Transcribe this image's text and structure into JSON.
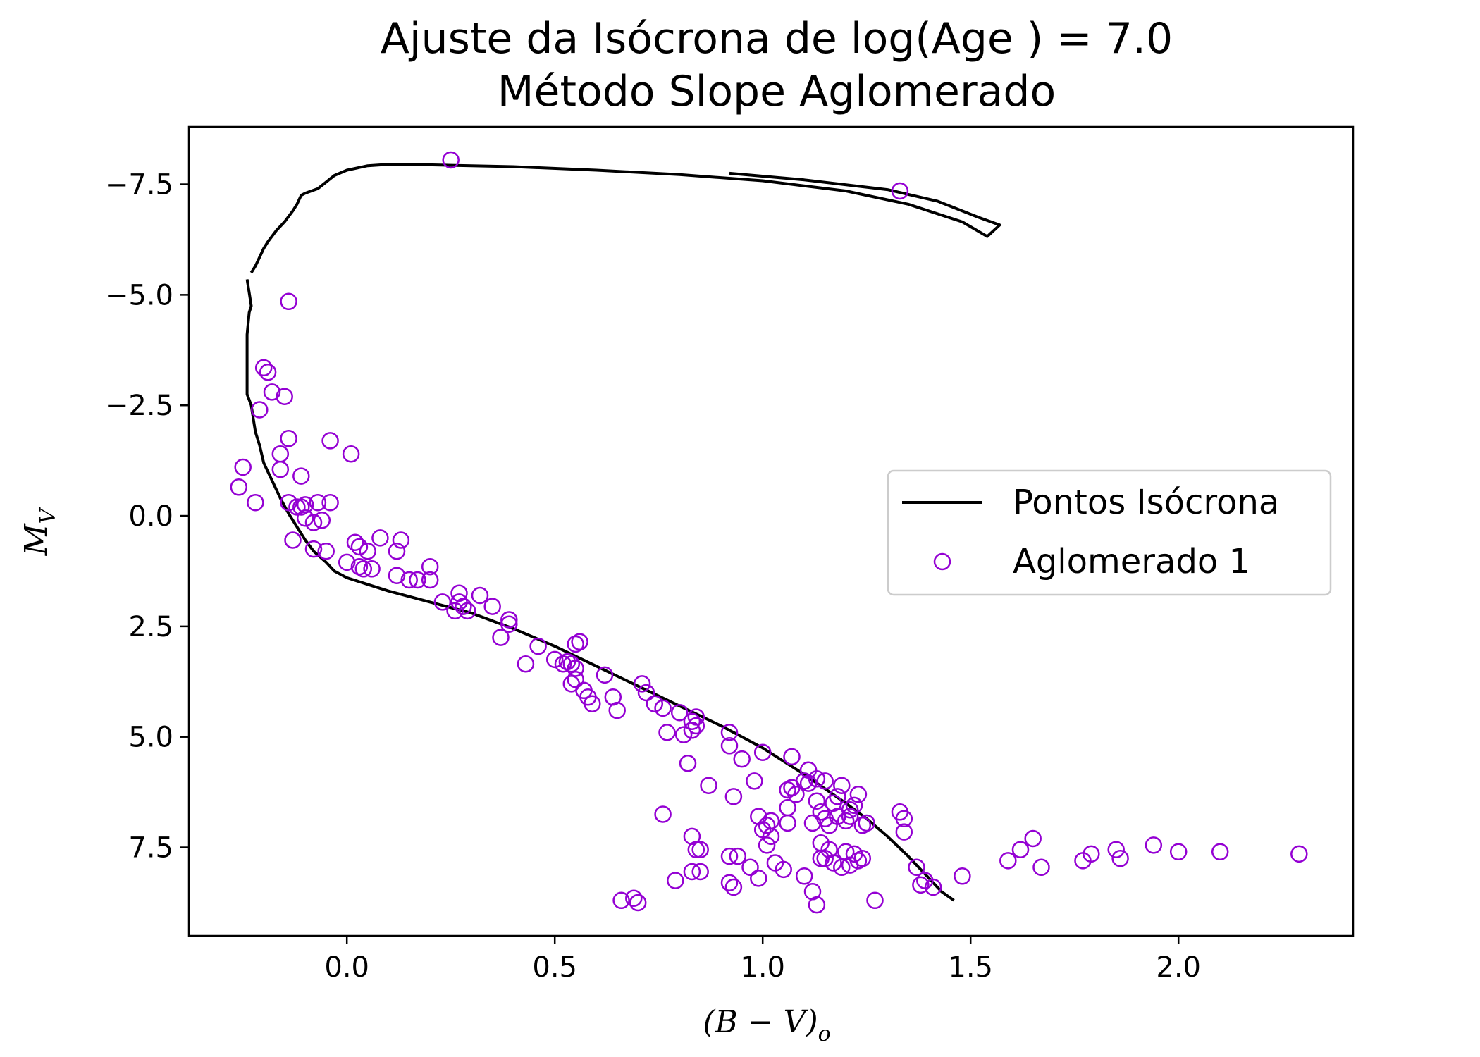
{
  "chart_data": {
    "type": "scatter",
    "title_line1": "Ajuste da Isócrona de log(Age ) = 7.0",
    "title_line2": "Método Slope Aglomerado",
    "xlabel": "(B − V)o",
    "ylabel": "MV",
    "xlim": [
      -0.38,
      2.42
    ],
    "ylim": [
      9.5,
      -8.8
    ],
    "y_inverted": true,
    "xticks": [
      0.0,
      0.5,
      1.0,
      1.5,
      2.0
    ],
    "xtick_labels": [
      "0.0",
      "0.5",
      "1.0",
      "1.5",
      "2.0"
    ],
    "yticks": [
      -7.5,
      -5.0,
      -2.5,
      0.0,
      2.5,
      5.0,
      7.5
    ],
    "ytick_labels": [
      "−7.5",
      "−5.0",
      "−2.5",
      "0.0",
      "2.5",
      "5.0",
      "7.5"
    ],
    "grid": false,
    "legend_position": "center-right",
    "colors": {
      "isochrone": "#000000",
      "cluster": "#9400d3"
    },
    "series": [
      {
        "name": "Pontos Isócrona",
        "kind": "line",
        "points": [
          [
            -0.23,
            -5.5
          ],
          [
            -0.22,
            -5.65
          ],
          [
            -0.2,
            -6.05
          ],
          [
            -0.19,
            -6.2
          ],
          [
            -0.17,
            -6.45
          ],
          [
            -0.15,
            -6.65
          ],
          [
            -0.13,
            -6.9
          ],
          [
            -0.12,
            -7.05
          ],
          [
            -0.11,
            -7.25
          ],
          [
            -0.1,
            -7.3
          ],
          [
            -0.07,
            -7.4
          ],
          [
            -0.05,
            -7.55
          ],
          [
            -0.03,
            -7.7
          ],
          [
            0.0,
            -7.82
          ],
          [
            0.05,
            -7.92
          ],
          [
            0.1,
            -7.95
          ],
          [
            0.15,
            -7.95
          ],
          [
            0.25,
            -7.93
          ],
          [
            0.4,
            -7.9
          ],
          [
            0.6,
            -7.82
          ],
          [
            0.8,
            -7.72
          ],
          [
            1.0,
            -7.58
          ],
          [
            1.2,
            -7.35
          ],
          [
            1.35,
            -7.05
          ],
          [
            1.48,
            -6.65
          ],
          [
            1.54,
            -6.32
          ],
          [
            1.57,
            -6.58
          ],
          [
            1.52,
            -6.75
          ],
          [
            1.42,
            -7.12
          ],
          [
            1.3,
            -7.38
          ],
          [
            1.1,
            -7.6
          ],
          [
            0.92,
            -7.75
          ]
        ]
      },
      {
        "name": "Pontos Isócrona",
        "kind": "line",
        "points": [
          [
            -0.24,
            -5.35
          ],
          [
            -0.235,
            -5.05
          ],
          [
            -0.23,
            -4.75
          ],
          [
            -0.235,
            -4.6
          ],
          [
            -0.24,
            -4.1
          ],
          [
            -0.24,
            -3.5
          ],
          [
            -0.24,
            -2.75
          ],
          [
            -0.23,
            -2.5
          ],
          [
            -0.225,
            -2.2
          ],
          [
            -0.22,
            -1.9
          ],
          [
            -0.21,
            -1.6
          ],
          [
            -0.2,
            -1.2
          ],
          [
            -0.18,
            -0.8
          ],
          [
            -0.16,
            -0.4
          ],
          [
            -0.14,
            -0.05
          ],
          [
            -0.12,
            0.25
          ],
          [
            -0.1,
            0.55
          ],
          [
            -0.08,
            0.8
          ],
          [
            -0.05,
            1.05
          ],
          [
            -0.03,
            1.25
          ],
          [
            0.0,
            1.4
          ],
          [
            0.05,
            1.55
          ],
          [
            0.1,
            1.7
          ],
          [
            0.2,
            1.95
          ],
          [
            0.3,
            2.2
          ],
          [
            0.4,
            2.55
          ],
          [
            0.5,
            2.95
          ],
          [
            0.6,
            3.4
          ],
          [
            0.7,
            3.85
          ],
          [
            0.8,
            4.3
          ],
          [
            0.9,
            4.75
          ],
          [
            1.0,
            5.25
          ],
          [
            1.1,
            5.85
          ],
          [
            1.2,
            6.5
          ],
          [
            1.25,
            6.85
          ],
          [
            1.3,
            7.25
          ],
          [
            1.35,
            7.7
          ],
          [
            1.4,
            8.2
          ],
          [
            1.43,
            8.5
          ],
          [
            1.46,
            8.7
          ]
        ]
      },
      {
        "name": "Aglomerado 1",
        "kind": "scatter",
        "points": [
          [
            0.25,
            -8.05
          ],
          [
            1.33,
            -7.35
          ],
          [
            -0.14,
            -4.85
          ],
          [
            -0.2,
            -3.35
          ],
          [
            -0.19,
            -3.25
          ],
          [
            -0.18,
            -2.8
          ],
          [
            -0.15,
            -2.7
          ],
          [
            -0.21,
            -2.4
          ],
          [
            -0.14,
            -1.75
          ],
          [
            -0.04,
            -1.7
          ],
          [
            0.01,
            -1.4
          ],
          [
            -0.16,
            -1.4
          ],
          [
            -0.25,
            -1.1
          ],
          [
            -0.16,
            -1.05
          ],
          [
            -0.11,
            -0.9
          ],
          [
            -0.26,
            -0.65
          ],
          [
            -0.22,
            -0.3
          ],
          [
            -0.14,
            -0.3
          ],
          [
            -0.12,
            -0.2
          ],
          [
            -0.1,
            -0.25
          ],
          [
            -0.11,
            -0.2
          ],
          [
            -0.07,
            -0.3
          ],
          [
            -0.04,
            -0.3
          ],
          [
            -0.1,
            0.05
          ],
          [
            -0.08,
            0.15
          ],
          [
            -0.06,
            0.1
          ],
          [
            -0.13,
            0.55
          ],
          [
            -0.08,
            0.75
          ],
          [
            -0.05,
            0.8
          ],
          [
            0.02,
            0.6
          ],
          [
            0.03,
            0.7
          ],
          [
            0.05,
            0.8
          ],
          [
            0.08,
            0.5
          ],
          [
            0.12,
            0.8
          ],
          [
            0.13,
            0.55
          ],
          [
            0.0,
            1.05
          ],
          [
            0.03,
            1.15
          ],
          [
            0.04,
            1.2
          ],
          [
            0.06,
            1.2
          ],
          [
            0.12,
            1.35
          ],
          [
            0.15,
            1.45
          ],
          [
            0.17,
            1.45
          ],
          [
            0.2,
            1.15
          ],
          [
            0.2,
            1.45
          ],
          [
            0.23,
            1.95
          ],
          [
            0.26,
            2.15
          ],
          [
            0.27,
            1.75
          ],
          [
            0.27,
            1.95
          ],
          [
            0.28,
            2.05
          ],
          [
            0.29,
            2.15
          ],
          [
            0.32,
            1.8
          ],
          [
            0.35,
            2.05
          ],
          [
            0.39,
            2.35
          ],
          [
            0.39,
            2.45
          ],
          [
            0.37,
            2.75
          ],
          [
            0.43,
            3.35
          ],
          [
            0.46,
            2.95
          ],
          [
            0.5,
            3.25
          ],
          [
            0.52,
            3.35
          ],
          [
            0.53,
            3.3
          ],
          [
            0.54,
            3.35
          ],
          [
            0.55,
            2.9
          ],
          [
            0.56,
            2.85
          ],
          [
            0.55,
            3.45
          ],
          [
            0.54,
            3.8
          ],
          [
            0.55,
            3.7
          ],
          [
            0.57,
            3.95
          ],
          [
            0.58,
            4.1
          ],
          [
            0.59,
            4.25
          ],
          [
            0.62,
            3.6
          ],
          [
            0.64,
            4.1
          ],
          [
            0.65,
            4.4
          ],
          [
            0.71,
            3.8
          ],
          [
            0.72,
            4.0
          ],
          [
            0.74,
            4.25
          ],
          [
            0.76,
            4.35
          ],
          [
            0.77,
            4.9
          ],
          [
            0.8,
            4.45
          ],
          [
            0.81,
            4.95
          ],
          [
            0.83,
            4.85
          ],
          [
            0.83,
            4.65
          ],
          [
            0.84,
            4.75
          ],
          [
            0.84,
            4.55
          ],
          [
            0.82,
            5.6
          ],
          [
            0.87,
            6.1
          ],
          [
            0.93,
            6.35
          ],
          [
            0.92,
            4.9
          ],
          [
            0.92,
            5.2
          ],
          [
            0.95,
            5.5
          ],
          [
            0.98,
            6.0
          ],
          [
            0.99,
            6.8
          ],
          [
            1.0,
            5.35
          ],
          [
            1.0,
            7.1
          ],
          [
            1.01,
            7.0
          ],
          [
            1.02,
            6.9
          ],
          [
            1.02,
            7.25
          ],
          [
            1.06,
            6.2
          ],
          [
            1.06,
            6.6
          ],
          [
            1.06,
            6.95
          ],
          [
            1.07,
            6.15
          ],
          [
            1.07,
            5.45
          ],
          [
            1.08,
            6.3
          ],
          [
            1.1,
            6.0
          ],
          [
            1.11,
            6.05
          ],
          [
            1.11,
            5.75
          ],
          [
            1.12,
            6.95
          ],
          [
            1.13,
            6.45
          ],
          [
            1.13,
            5.95
          ],
          [
            1.14,
            6.7
          ],
          [
            1.14,
            7.4
          ],
          [
            1.15,
            6.85
          ],
          [
            1.15,
            6.0
          ],
          [
            1.16,
            7.0
          ],
          [
            1.17,
            6.5
          ],
          [
            1.18,
            6.35
          ],
          [
            1.18,
            6.8
          ],
          [
            1.19,
            6.1
          ],
          [
            1.2,
            6.9
          ],
          [
            1.21,
            6.65
          ],
          [
            1.21,
            6.8
          ],
          [
            1.22,
            6.55
          ],
          [
            1.23,
            6.3
          ],
          [
            1.24,
            7.0
          ],
          [
            1.25,
            6.95
          ],
          [
            1.05,
            8.0
          ],
          [
            1.1,
            8.15
          ],
          [
            1.12,
            8.5
          ],
          [
            1.13,
            8.8
          ],
          [
            1.14,
            7.75
          ],
          [
            1.15,
            7.75
          ],
          [
            1.16,
            7.55
          ],
          [
            1.17,
            7.85
          ],
          [
            1.2,
            7.6
          ],
          [
            1.22,
            7.65
          ],
          [
            1.23,
            7.8
          ],
          [
            1.24,
            7.75
          ],
          [
            1.21,
            7.9
          ],
          [
            1.19,
            7.95
          ],
          [
            1.27,
            8.7
          ],
          [
            0.76,
            6.75
          ],
          [
            0.83,
            7.25
          ],
          [
            0.84,
            7.55
          ],
          [
            0.85,
            7.55
          ],
          [
            0.83,
            8.05
          ],
          [
            0.85,
            8.05
          ],
          [
            0.79,
            8.25
          ],
          [
            0.92,
            8.3
          ],
          [
            0.93,
            8.4
          ],
          [
            0.92,
            7.7
          ],
          [
            0.94,
            7.7
          ],
          [
            0.97,
            7.95
          ],
          [
            0.99,
            8.2
          ],
          [
            1.01,
            7.45
          ],
          [
            1.03,
            7.85
          ],
          [
            0.66,
            8.7
          ],
          [
            0.69,
            8.65
          ],
          [
            0.7,
            8.75
          ],
          [
            1.33,
            6.7
          ],
          [
            1.34,
            6.85
          ],
          [
            1.34,
            7.15
          ],
          [
            1.37,
            7.95
          ],
          [
            1.38,
            8.35
          ],
          [
            1.39,
            8.25
          ],
          [
            1.41,
            8.4
          ],
          [
            1.48,
            8.15
          ],
          [
            1.59,
            7.8
          ],
          [
            1.62,
            7.55
          ],
          [
            1.65,
            7.3
          ],
          [
            1.67,
            7.95
          ],
          [
            1.77,
            7.8
          ],
          [
            1.79,
            7.65
          ],
          [
            1.85,
            7.55
          ],
          [
            1.86,
            7.75
          ],
          [
            1.94,
            7.45
          ],
          [
            2.0,
            7.6
          ],
          [
            2.1,
            7.6
          ],
          [
            2.29,
            7.65
          ]
        ]
      }
    ]
  }
}
